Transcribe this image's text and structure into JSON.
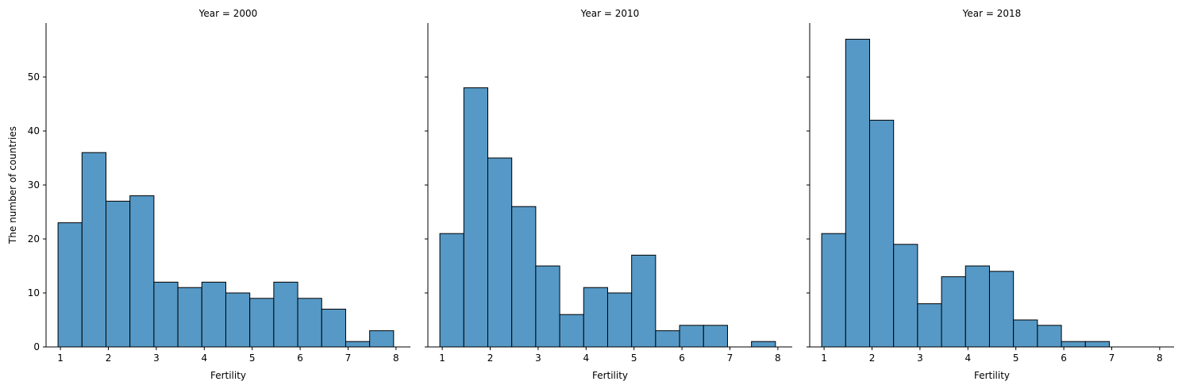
{
  "chart_data": [
    {
      "type": "bar",
      "title": "Year = 2000",
      "xlabel": "Fertility",
      "ylabel": "The number of countries",
      "xlim": [
        0.7,
        8.3
      ],
      "ylim": [
        0,
        60
      ],
      "xticks": [
        1,
        2,
        3,
        4,
        5,
        6,
        7,
        8
      ],
      "yticks": [
        0,
        10,
        20,
        30,
        40,
        50
      ],
      "bin_edges": [
        0.95,
        1.45,
        1.95,
        2.45,
        2.95,
        3.45,
        3.95,
        4.45,
        4.95,
        5.45,
        5.95,
        6.45,
        6.95,
        7.45,
        7.95
      ],
      "values": [
        23,
        36,
        27,
        28,
        12,
        11,
        12,
        10,
        9,
        12,
        9,
        7,
        1,
        3
      ]
    },
    {
      "type": "bar",
      "title": "Year = 2010",
      "xlabel": "Fertility",
      "ylabel": "",
      "xlim": [
        0.7,
        8.3
      ],
      "ylim": [
        0,
        60
      ],
      "xticks": [
        1,
        2,
        3,
        4,
        5,
        6,
        7,
        8
      ],
      "yticks": [
        0,
        10,
        20,
        30,
        40,
        50
      ],
      "bin_edges": [
        0.95,
        1.45,
        1.95,
        2.45,
        2.95,
        3.45,
        3.95,
        4.45,
        4.95,
        5.45,
        5.95,
        6.45,
        6.95,
        7.45,
        7.95
      ],
      "values": [
        21,
        48,
        35,
        26,
        15,
        6,
        11,
        10,
        17,
        3,
        4,
        4,
        0,
        1
      ]
    },
    {
      "type": "bar",
      "title": "Year = 2018",
      "xlabel": "Fertility",
      "ylabel": "",
      "xlim": [
        0.7,
        8.3
      ],
      "ylim": [
        0,
        60
      ],
      "xticks": [
        1,
        2,
        3,
        4,
        5,
        6,
        7,
        8
      ],
      "yticks": [
        0,
        10,
        20,
        30,
        40,
        50
      ],
      "bin_edges": [
        0.95,
        1.45,
        1.95,
        2.45,
        2.95,
        3.45,
        3.95,
        4.45,
        4.95,
        5.45,
        5.95,
        6.45,
        6.95,
        7.45,
        7.95
      ],
      "values": [
        21,
        57,
        42,
        19,
        8,
        13,
        15,
        14,
        5,
        4,
        1,
        1,
        0,
        0
      ]
    }
  ]
}
